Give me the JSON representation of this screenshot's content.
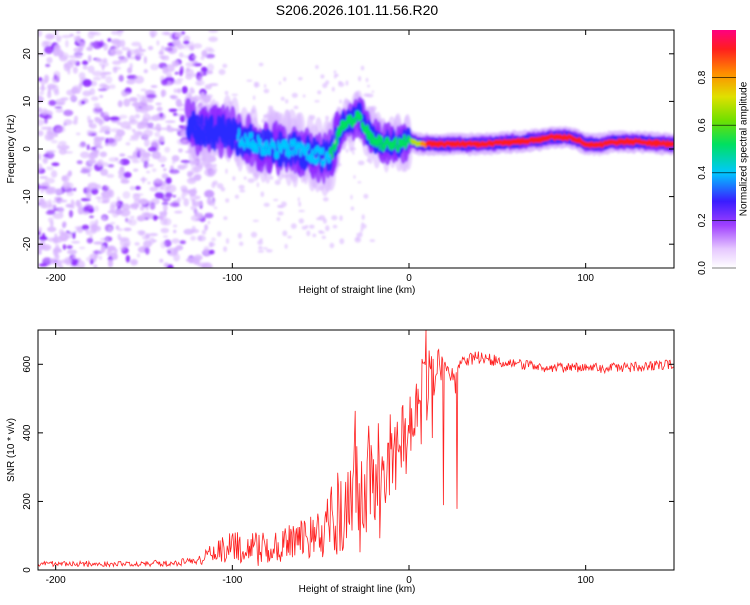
{
  "title": "S206.2026.101.11.56.R20",
  "chart_data": [
    {
      "type": "heatmap",
      "xlabel": "Height of straight line (km)",
      "ylabel": "Frequency (Hz)",
      "xlim": [
        -210,
        150
      ],
      "ylim": [
        -25,
        25
      ],
      "xticks": [
        -200,
        -100,
        0,
        100
      ],
      "yticks": [
        -20,
        -10,
        0,
        10,
        20
      ],
      "colorbar": {
        "label": "Normalized spectral amplitude",
        "range": [
          0,
          1
        ],
        "ticks": [
          "0.0",
          "0.2",
          "0.4",
          "0.6",
          "0.8"
        ],
        "colors": [
          "#ffffff",
          "#d9b6ff",
          "#8f2bff",
          "#2a2aff",
          "#00c8ff",
          "#00e060",
          "#b8e000",
          "#ff8c00",
          "#ff1e1e",
          "#ff007f"
        ]
      },
      "ridge": {
        "x": [
          -125,
          -115,
          -105,
          -95,
          -85,
          -75,
          -65,
          -55,
          -45,
          -38,
          -32,
          -28,
          -24,
          -20,
          -15,
          -10,
          -5,
          0,
          5,
          10,
          20,
          40,
          60,
          75,
          80,
          90,
          95,
          100,
          110,
          115,
          130,
          150
        ],
        "freq": [
          5,
          3,
          4,
          2,
          1,
          0,
          0,
          -1,
          -2,
          5,
          6,
          7,
          4,
          2,
          1,
          1,
          1,
          2,
          1,
          1,
          1,
          1,
          1.5,
          2,
          2.5,
          2.5,
          2,
          1,
          1,
          1.5,
          1.5,
          1
        ],
        "amplitude": [
          0.3,
          0.35,
          0.35,
          0.4,
          0.4,
          0.45,
          0.45,
          0.45,
          0.5,
          0.55,
          0.55,
          0.6,
          0.55,
          0.6,
          0.55,
          0.6,
          0.55,
          0.6,
          0.65,
          0.85,
          0.9,
          0.85,
          0.85,
          0.9,
          0.9,
          0.9,
          0.85,
          0.9,
          0.9,
          0.85,
          0.85,
          0.85
        ]
      }
    },
    {
      "type": "line",
      "xlabel": "Height of straight line (km)",
      "ylabel": "SNR (10 * v/v)",
      "xlim": [
        -210,
        150
      ],
      "ylim": [
        0,
        700
      ],
      "xticks": [
        -200,
        -100,
        0,
        100
      ],
      "yticks": [
        0,
        200,
        400,
        600
      ],
      "color": "#ff2020",
      "envelope": {
        "x": [
          -210,
          -150,
          -120,
          -110,
          -100,
          -80,
          -60,
          -50,
          -40,
          -35,
          -30,
          -25,
          -20,
          -15,
          -10,
          -5,
          0,
          5,
          8,
          10,
          12,
          15,
          20,
          25,
          30,
          40,
          50,
          60,
          80,
          100,
          120,
          140,
          150
        ],
        "mean": [
          18,
          18,
          25,
          55,
          70,
          65,
          90,
          110,
          160,
          250,
          330,
          230,
          300,
          270,
          340,
          390,
          430,
          450,
          560,
          620,
          520,
          590,
          600,
          570,
          610,
          620,
          610,
          600,
          590,
          590,
          590,
          595,
          600
        ],
        "noise": [
          8,
          8,
          12,
          30,
          45,
          45,
          60,
          80,
          130,
          180,
          200,
          160,
          170,
          160,
          150,
          120,
          90,
          100,
          120,
          130,
          110,
          60,
          35,
          25,
          20,
          20,
          18,
          15,
          15,
          15,
          15,
          15,
          15
        ]
      }
    }
  ]
}
